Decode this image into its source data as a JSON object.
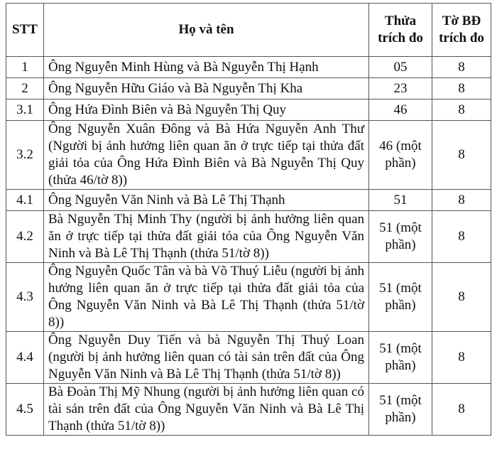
{
  "table": {
    "headers": [
      "STT",
      "Họ và tên",
      "Thửa trích đo",
      "Tờ BĐ trích đo"
    ],
    "rows": [
      {
        "stt": "1",
        "name": "Ông Nguyễn Minh Hùng và Bà Nguyễn Thị Hạnh",
        "thua": "05",
        "to": "8"
      },
      {
        "stt": "2",
        "name": "Ông Nguyễn Hữu Giáo và Bà Nguyễn Thị Kha",
        "thua": "23",
        "to": "8"
      },
      {
        "stt": "3.1",
        "name": "Ông Hứa Đình Biên và Bà Nguyễn Thị Quy",
        "thua": "46",
        "to": "8"
      },
      {
        "stt": "3.2",
        "name": "Ông Nguyễn Xuân Đông và Bà Hứa Nguyễn Anh Thư (Người bị ảnh hưởng liên quan ăn ở trực tiếp tại thửa đất giải tỏa của Ông Hứa Đình Biên và Bà Nguyễn Thị Quy (thửa 46/tờ 8))",
        "thua": "46 (một phần)",
        "to": "8"
      },
      {
        "stt": "4.1",
        "name": "Ông Nguyễn Văn Ninh và Bà Lê Thị Thạnh",
        "thua": "51",
        "to": "8"
      },
      {
        "stt": "4.2",
        "name": "Bà Nguyễn Thị Minh Thy (người bị ảnh hưởng liên quan ăn ở trực tiếp tại thửa đất giải tỏa của Ông Nguyễn Văn Ninh và Bà Lê Thị Thạnh (thửa 51/tờ 8))",
        "thua": "51 (một phần)",
        "to": "8"
      },
      {
        "stt": "4.3",
        "name": "Ông Nguyễn Quốc Tân và bà Võ Thuý Liễu (người bị ảnh hưởng liên quan ăn ở trực tiếp tại thửa đất giải tỏa của Ông Nguyễn Văn Ninh và Bà Lê Thị Thạnh (thửa 51/tờ 8))",
        "thua": "51 (một phần)",
        "to": "8"
      },
      {
        "stt": "4.4",
        "name": "Ông Nguyễn Duy Tiến và bà Nguyễn Thị Thuý Loan (người bị ảnh hưởng liên quan có tài sản trên đất của Ông Nguyễn Văn Ninh và Bà Lê Thị Thạnh (thửa 51/tờ 8))",
        "thua": "51 (một phần)",
        "to": "8"
      },
      {
        "stt": "4.5",
        "name": "Bà Đoàn Thị Mỹ Nhung (người bị ảnh hưởng liên quan có tài sản trên đất của Ông Nguyễn Văn Ninh và Bà Lê Thị Thạnh (thửa 51/tờ 8))",
        "thua": "51 (một phần)",
        "to": "8"
      }
    ]
  }
}
